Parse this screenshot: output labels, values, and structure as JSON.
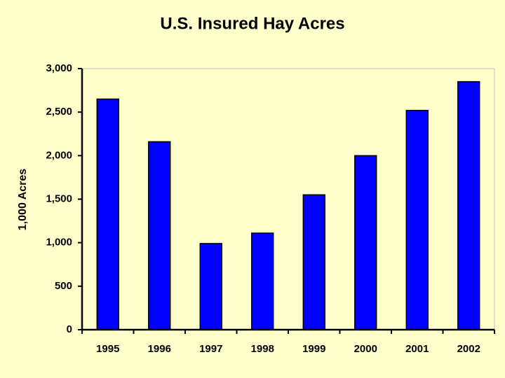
{
  "chart_data": {
    "type": "bar",
    "title": "U.S. Insured Hay Acres",
    "y_label": "1,000 Acres",
    "categories": [
      "1995",
      "1996",
      "1997",
      "1998",
      "1999",
      "2000",
      "2001",
      "2002"
    ],
    "values": [
      2650,
      2160,
      990,
      1110,
      1550,
      2000,
      2520,
      2850
    ],
    "color": "#0000ff",
    "ylim": [
      0,
      3000
    ],
    "yticks": [
      0,
      500,
      {
        "value": 1000,
        "label": "1,000"
      },
      {
        "value": 1500,
        "label": "1,500"
      },
      {
        "value": 2000,
        "label": "2,000"
      },
      {
        "value": 2500,
        "label": "2,500"
      },
      {
        "value": 3000,
        "label": "3,000"
      }
    ],
    "grid": false
  }
}
